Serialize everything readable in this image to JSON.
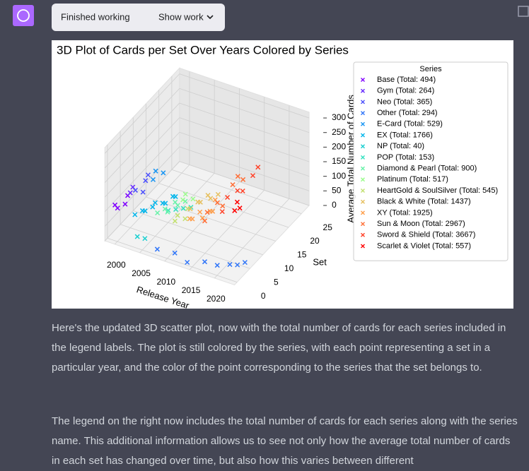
{
  "header": {
    "status": "Finished working",
    "button": "Show work"
  },
  "chart_data": {
    "type": "scatter3d",
    "title": "3D Plot of Cards per Set Over Years Colored by Series",
    "xlabel": "Release Year",
    "ylabel": "Set",
    "zlabel": "Average Total Number of Cards",
    "xlim": [
      1998,
      2024
    ],
    "ylim": [
      -1,
      28
    ],
    "zlim": [
      0,
      320
    ],
    "xticks": [
      2000,
      2005,
      2010,
      2015,
      2020
    ],
    "yticks": [
      0,
      5,
      10,
      15,
      20,
      25
    ],
    "zticks": [
      0,
      50,
      100,
      150,
      200,
      250,
      300
    ],
    "grid": true,
    "legend_title": "Series",
    "legend": "upper right",
    "series": [
      {
        "name": "Base (Total: 494)",
        "color": "#8000ff",
        "x": [
          1999,
          1999,
          2000,
          2000
        ],
        "y": [
          1,
          2,
          3,
          4
        ],
        "z": [
          110,
          90,
          100,
          120
        ]
      },
      {
        "name": "Gym (Total: 264)",
        "color": "#6629fe",
        "x": [
          2000,
          2000
        ],
        "y": [
          5,
          6
        ],
        "z": [
          120,
          130
        ]
      },
      {
        "name": "Neo (Total: 365)",
        "color": "#4c50fc",
        "x": [
          2000,
          2001,
          2001,
          2001
        ],
        "y": [
          7,
          8,
          9,
          10
        ],
        "z": [
          110,
          100,
          130,
          140
        ]
      },
      {
        "name": "Other (Total: 294)",
        "color": "#3176f8",
        "x": [
          2008,
          2011,
          2014,
          2017,
          2019,
          2021,
          2022,
          2023
        ],
        "y": [
          0,
          1,
          0,
          1,
          2,
          3,
          4,
          5
        ],
        "z": [
          20,
          15,
          10,
          20,
          10,
          15,
          10,
          15
        ]
      },
      {
        "name": "E-Card (Total: 529)",
        "color": "#1996f3",
        "x": [
          2002,
          2002,
          2003
        ],
        "y": [
          10,
          11,
          12
        ],
        "z": [
          130,
          150,
          140
        ]
      },
      {
        "name": "EX (Total: 1766)",
        "color": "#00b5eb",
        "x": [
          2003,
          2004,
          2004,
          2005,
          2005,
          2006,
          2006,
          2007,
          2007
        ],
        "y": [
          1,
          2,
          3,
          4,
          5,
          6,
          7,
          8,
          9
        ],
        "z": [
          100,
          110,
          100,
          110,
          115,
          110,
          100,
          120,
          110
        ]
      },
      {
        "name": "NP (Total: 40)",
        "color": "#19cfd0",
        "x": [
          2004,
          2005
        ],
        "y": [
          0,
          1
        ],
        "z": [
          40,
          30
        ]
      },
      {
        "name": "POP (Total: 153)",
        "color": "#33e1c0",
        "x": [
          2004,
          2005,
          2006,
          2007
        ],
        "y": [
          12,
          13,
          14,
          15
        ],
        "z": [
          17,
          17,
          17,
          17
        ]
      },
      {
        "name": "Diamond & Pearl (Total: 900)",
        "color": "#66f2a8",
        "x": [
          2007,
          2008,
          2008,
          2009,
          2009,
          2010
        ],
        "y": [
          2,
          3,
          4,
          5,
          6,
          7
        ],
        "z": [
          120,
          130,
          110,
          140,
          120,
          130
        ]
      },
      {
        "name": "Platinum (Total: 517)",
        "color": "#99fc8a",
        "x": [
          2009,
          2009,
          2010
        ],
        "y": [
          8,
          9,
          10
        ],
        "z": [
          120,
          130,
          110
        ]
      },
      {
        "name": "HeartGold & SoulSilver (Total: 545)",
        "color": "#c2e070",
        "x": [
          2010,
          2010,
          2011,
          2011
        ],
        "y": [
          3,
          4,
          5,
          6
        ],
        "z": [
          100,
          110,
          95,
          120
        ]
      },
      {
        "name": "Black & White (Total: 1437)",
        "color": "#e6c060",
        "x": [
          2011,
          2012,
          2012,
          2013,
          2013,
          2014
        ],
        "y": [
          7,
          8,
          9,
          10,
          11,
          12
        ],
        "z": [
          110,
          130,
          120,
          140,
          120,
          130
        ]
      },
      {
        "name": "XY (Total: 1925)",
        "color": "#ff9e4a",
        "x": [
          2014,
          2014,
          2015,
          2015,
          2016,
          2016,
          2016
        ],
        "y": [
          1,
          2,
          3,
          4,
          5,
          6,
          7
        ],
        "z": [
          150,
          140,
          160,
          130,
          150,
          140,
          170
        ]
      },
      {
        "name": "Sun & Moon (Total: 2967)",
        "color": "#ff7038",
        "x": [
          2017,
          2017,
          2018,
          2018,
          2019,
          2019,
          2019
        ],
        "y": [
          1,
          2,
          4,
          6,
          8,
          10,
          12
        ],
        "z": [
          160,
          180,
          200,
          170,
          230,
          240,
          210
        ]
      },
      {
        "name": "Sword & Shield (Total: 3667)",
        "color": "#ff4026",
        "x": [
          2020,
          2020,
          2021,
          2021,
          2022,
          2022
        ],
        "y": [
          2,
          4,
          6,
          8,
          10,
          12
        ],
        "z": [
          200,
          230,
          240,
          220,
          260,
          270
        ]
      },
      {
        "name": "Scarlet & Violet (Total: 557)",
        "color": "#ff0000",
        "x": [
          2023,
          2023,
          2023
        ],
        "y": [
          1,
          2,
          3
        ],
        "z": [
          230,
          250,
          220
        ]
      }
    ]
  },
  "message": {
    "paragraphs": [
      "Here's the updated 3D scatter plot, now with the total number of cards for each series included in the legend labels. The plot is still colored by the series, with each point representing a set in a particular year, and the color of the point corresponding to the series that the set belongs to.",
      "The legend on the right now includes the total number of cards for each series along with the series name. This additional information allows us to see not only how the average total number of cards in each set has changed over time, but also how this varies between different"
    ]
  }
}
